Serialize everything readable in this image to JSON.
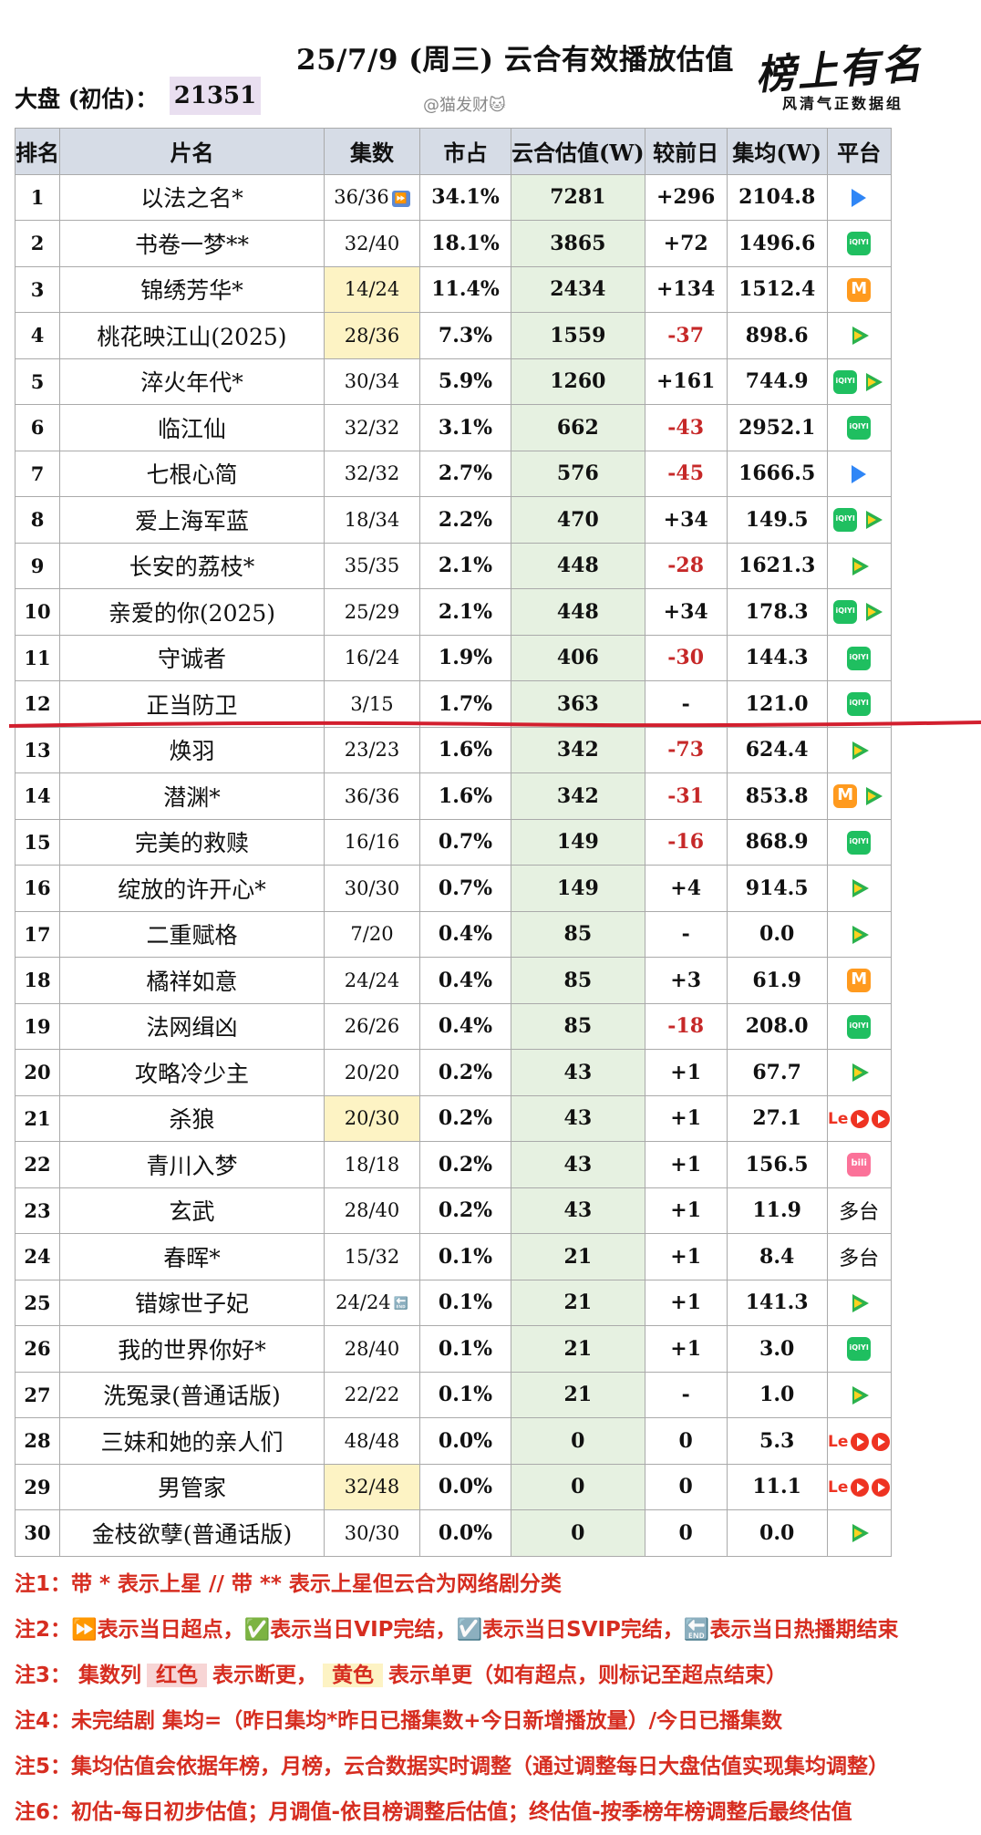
{
  "title": "25/7/9 (周三) 云合有效播放估值",
  "dapan_label": "大盘 (初估)：",
  "dapan_value": "21351",
  "watermark": "@猫发财🐱",
  "logo": {
    "main": "榜上有名",
    "sub": "风清气正数据组"
  },
  "columns": [
    "排名",
    "片名",
    "集数",
    "市占",
    "云合估值(W)",
    "较前日",
    "集均(W)",
    "平台"
  ],
  "colors": {
    "header_bg": "#d6dce6",
    "estimate_bg": "#e6f1e1",
    "negative": "#c62828",
    "yellow": "#fdf3c4",
    "note_red": "#d62d20"
  },
  "rows": [
    {
      "rank": "1",
      "name": "以法之名*",
      "eps": "36/36",
      "eps_icon": "superpoint",
      "share": "34.1%",
      "est": "7281",
      "diff": "+296",
      "avg": "2104.8",
      "platforms": [
        "youku"
      ]
    },
    {
      "rank": "2",
      "name": "书卷一梦**",
      "eps": "32/40",
      "share": "18.1%",
      "est": "3865",
      "diff": "+72",
      "avg": "1496.6",
      "platforms": [
        "iqiyi"
      ]
    },
    {
      "rank": "3",
      "name": "锦绣芳华*",
      "eps": "14/24",
      "eps_hl": "yellow",
      "share": "11.4%",
      "est": "2434",
      "diff": "+134",
      "avg": "1512.4",
      "platforms": [
        "mango"
      ]
    },
    {
      "rank": "4",
      "name": "桃花映江山(2025)",
      "eps": "28/36",
      "eps_hl": "yellow",
      "share": "7.3%",
      "est": "1559",
      "diff": "-37",
      "avg": "898.6",
      "platforms": [
        "tencent"
      ]
    },
    {
      "rank": "5",
      "name": "淬火年代*",
      "eps": "30/34",
      "share": "5.9%",
      "est": "1260",
      "diff": "+161",
      "avg": "744.9",
      "platforms": [
        "iqiyi",
        "tencent"
      ]
    },
    {
      "rank": "6",
      "name": "临江仙",
      "eps": "32/32",
      "share": "3.1%",
      "est": "662",
      "diff": "-43",
      "avg": "2952.1",
      "platforms": [
        "iqiyi"
      ]
    },
    {
      "rank": "7",
      "name": "七根心简",
      "eps": "32/32",
      "share": "2.7%",
      "est": "576",
      "diff": "-45",
      "avg": "1666.5",
      "platforms": [
        "youku"
      ]
    },
    {
      "rank": "8",
      "name": "爱上海军蓝",
      "eps": "18/34",
      "share": "2.2%",
      "est": "470",
      "diff": "+34",
      "avg": "149.5",
      "platforms": [
        "iqiyi",
        "tencent"
      ]
    },
    {
      "rank": "9",
      "name": "长安的荔枝*",
      "eps": "35/35",
      "share": "2.1%",
      "est": "448",
      "diff": "-28",
      "avg": "1621.3",
      "platforms": [
        "tencent"
      ]
    },
    {
      "rank": "10",
      "name": "亲爱的你(2025)",
      "eps": "25/29",
      "share": "2.1%",
      "est": "448",
      "diff": "+34",
      "avg": "178.3",
      "platforms": [
        "iqiyi",
        "tencent"
      ]
    },
    {
      "rank": "11",
      "name": "守诚者",
      "eps": "16/24",
      "share": "1.9%",
      "est": "406",
      "diff": "-30",
      "avg": "144.3",
      "platforms": [
        "iqiyi"
      ]
    },
    {
      "rank": "12",
      "name": "正当防卫",
      "eps": "3/15",
      "share": "1.7%",
      "est": "363",
      "diff": "-",
      "avg": "121.0",
      "platforms": [
        "iqiyi"
      ]
    },
    {
      "rank": "13",
      "name": "焕羽",
      "eps": "23/23",
      "share": "1.6%",
      "est": "342",
      "diff": "-73",
      "avg": "624.4",
      "platforms": [
        "tencent"
      ]
    },
    {
      "rank": "14",
      "name": "潜渊*",
      "eps": "36/36",
      "share": "1.6%",
      "est": "342",
      "diff": "-31",
      "avg": "853.8",
      "platforms": [
        "mango",
        "tencent"
      ]
    },
    {
      "rank": "15",
      "name": "完美的救赎",
      "eps": "16/16",
      "share": "0.7%",
      "est": "149",
      "diff": "-16",
      "avg": "868.9",
      "platforms": [
        "iqiyi"
      ]
    },
    {
      "rank": "16",
      "name": "绽放的许开心*",
      "eps": "30/30",
      "share": "0.7%",
      "est": "149",
      "diff": "+4",
      "avg": "914.5",
      "platforms": [
        "tencent"
      ]
    },
    {
      "rank": "17",
      "name": "二重赋格",
      "eps": "7/20",
      "share": "0.4%",
      "est": "85",
      "diff": "-",
      "avg": "0.0",
      "platforms": [
        "tencent"
      ]
    },
    {
      "rank": "18",
      "name": "橘祥如意",
      "eps": "24/24",
      "share": "0.4%",
      "est": "85",
      "diff": "+3",
      "avg": "61.9",
      "platforms": [
        "mango"
      ]
    },
    {
      "rank": "19",
      "name": "法网缉凶",
      "eps": "26/26",
      "share": "0.4%",
      "est": "85",
      "diff": "-18",
      "avg": "208.0",
      "platforms": [
        "iqiyi"
      ]
    },
    {
      "rank": "20",
      "name": "攻略冷少主",
      "eps": "20/20",
      "share": "0.2%",
      "est": "43",
      "diff": "+1",
      "avg": "67.7",
      "platforms": [
        "tencent"
      ]
    },
    {
      "rank": "21",
      "name": "杀狼",
      "eps": "20/30",
      "eps_hl": "yellow",
      "share": "0.2%",
      "est": "43",
      "diff": "+1",
      "avg": "27.1",
      "platforms": [
        "le",
        "red",
        "red"
      ]
    },
    {
      "rank": "22",
      "name": "青川入梦",
      "eps": "18/18",
      "share": "0.2%",
      "est": "43",
      "diff": "+1",
      "avg": "156.5",
      "platforms": [
        "bili"
      ]
    },
    {
      "rank": "23",
      "name": "玄武",
      "eps": "28/40",
      "share": "0.2%",
      "est": "43",
      "diff": "+1",
      "avg": "11.9",
      "platform_text": "多台"
    },
    {
      "rank": "24",
      "name": "春晖*",
      "eps": "15/32",
      "share": "0.1%",
      "est": "21",
      "diff": "+1",
      "avg": "8.4",
      "platform_text": "多台"
    },
    {
      "rank": "25",
      "name": "错嫁世子妃",
      "eps": "24/24",
      "eps_icon": "end",
      "share": "0.1%",
      "est": "21",
      "diff": "+1",
      "avg": "141.3",
      "platforms": [
        "tencent"
      ]
    },
    {
      "rank": "26",
      "name": "我的世界你好*",
      "eps": "28/40",
      "share": "0.1%",
      "est": "21",
      "diff": "+1",
      "avg": "3.0",
      "platforms": [
        "iqiyi"
      ]
    },
    {
      "rank": "27",
      "name": "洗冤录(普通话版)",
      "eps": "22/22",
      "share": "0.1%",
      "est": "21",
      "diff": "-",
      "avg": "1.0",
      "platforms": [
        "tencent"
      ]
    },
    {
      "rank": "28",
      "name": "三妹和她的亲人们",
      "eps": "48/48",
      "share": "0.0%",
      "est": "0",
      "diff": "0",
      "avg": "5.3",
      "platforms": [
        "le",
        "red",
        "red"
      ]
    },
    {
      "rank": "29",
      "name": "男管家",
      "eps": "32/48",
      "eps_hl": "yellow",
      "share": "0.0%",
      "est": "0",
      "diff": "0",
      "avg": "11.1",
      "platforms": [
        "le",
        "red",
        "red"
      ]
    },
    {
      "rank": "30",
      "name": "金枝欲孽(普通话版)",
      "eps": "30/30",
      "share": "0.0%",
      "est": "0",
      "diff": "0",
      "avg": "0.0",
      "platforms": [
        "tencent"
      ]
    }
  ],
  "notes": {
    "n1": "注1：带 * 表示上星 // 带 ** 表示上星但云合为网络剧分类",
    "n2": "注2：⏩表示当日超点，✅表示当日VIP完结，☑️表示当日SVIP完结，🔚表示当日热播期结束",
    "n3_a": "注3：  集数列",
    "n3_red": "红色",
    "n3_b": "表示断更，",
    "n3_yel": "黄色",
    "n3_c": "表示单更（如有超点，则标记至超点结束）",
    "n4": "注4：未完结剧 集均=（昨日集均*昨日已播集数+今日新增播放量）/今日已播集数",
    "n5": "注5：集均估值会依据年榜，月榜，云合数据实时调整（通过调整每日大盘估值实现集均调整）",
    "n6": "注6：初估-每日初步估值；月调值-依目榜调整后估值；终估值-按季榜年榜调整后最终估值"
  }
}
